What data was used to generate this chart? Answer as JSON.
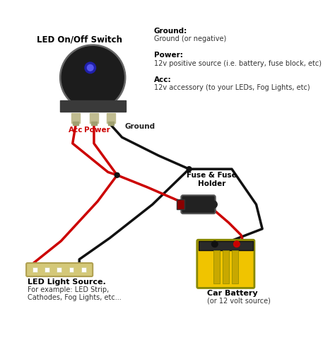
{
  "title": "LED On/Off Switch",
  "background_color": "#ffffff",
  "legend_items": [
    {
      "label": "Ground:",
      "desc": "Ground (or negative)"
    },
    {
      "label": "Power:",
      "desc": "12v positive source (i.e. battery, fuse block, etc)"
    },
    {
      "label": "Acc:",
      "desc": "12v accessory (to your LEDs, Fog Lights, etc)"
    }
  ],
  "labels": {
    "switch": "LED On/Off Switch",
    "acc": "Acc",
    "power": "Power",
    "ground": "Ground",
    "fuse": "Fuse & Fuse\nHolder",
    "battery_title": "Car Battery",
    "battery_sub": "(or 12 volt source)",
    "led_title": "LED Light Source.",
    "led_sub": "For example: LED Strip,\nCathodes, Fog Lights, etc..."
  },
  "colors": {
    "red_wire": "#cc0000",
    "black_wire": "#111111",
    "switch_body": "#1a1a1a",
    "switch_terminal": "#c8c8a0",
    "battery_yellow": "#f5c800",
    "battery_dark": "#2a2a2a",
    "fuse_body": "#333333",
    "led_strip": "#e8e0c0",
    "dot": "#111111",
    "text_label": "#cc0000",
    "text_normal": "#111111",
    "text_bold_label": "#000000"
  }
}
